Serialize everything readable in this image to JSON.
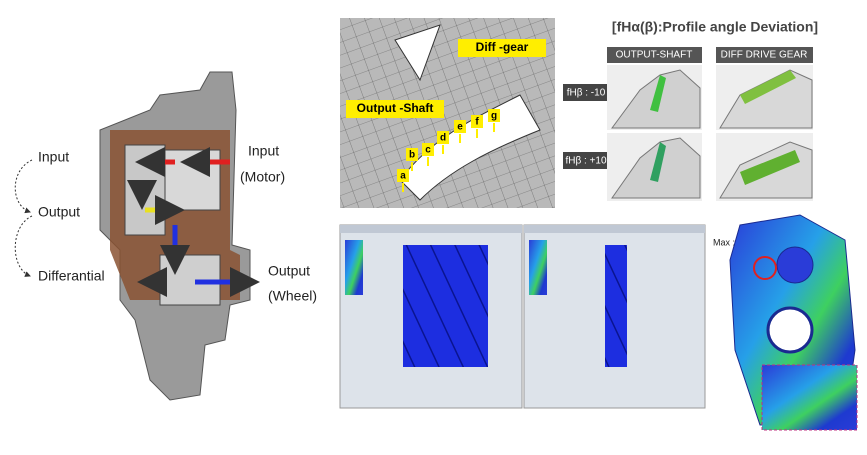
{
  "flow": {
    "input": "Input",
    "output": "Output",
    "differential": "Differantial"
  },
  "gearbox": {
    "input": "Input",
    "input_sub": "(Motor)",
    "output": "Output",
    "output_sub": "(Wheel)"
  },
  "mesh": {
    "diff_gear": "Diff -gear",
    "output_shaft": "Output -Shaft",
    "points": [
      "a",
      "b",
      "c",
      "d",
      "e",
      "f",
      "g"
    ]
  },
  "profile": {
    "title": "[fHα(β):Profile angle Deviation]",
    "columns": [
      "OUTPUT-SHAFT",
      "DIFF DRIVE GEAR"
    ],
    "rows": [
      "fHβ : -10",
      "fHβ : +10"
    ]
  },
  "contour": {
    "max_label": "Max :"
  }
}
